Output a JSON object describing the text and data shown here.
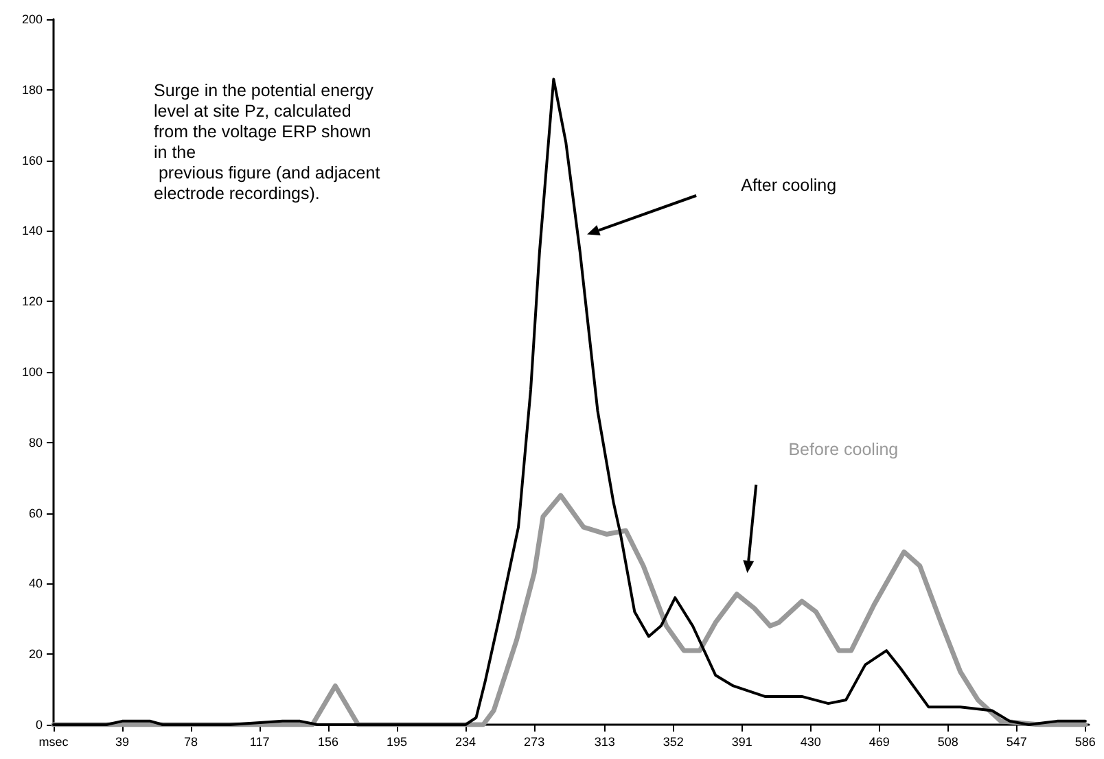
{
  "chart_data": {
    "type": "line",
    "annotations": [
      "Surge in the potential energy\nlevel at site Pz, calculated\nfrom the voltage ERP shown\nin the\n previous figure (and adjacent\nelectrode recordings)."
    ],
    "xlim": [
      0,
      588
    ],
    "xticks": [
      {
        "value": 0,
        "label": "msec"
      },
      39,
      78,
      117,
      156,
      195,
      234,
      273,
      313,
      352,
      391,
      430,
      469,
      508,
      547,
      586
    ],
    "ylim": [
      0,
      200
    ],
    "yticks": [
      0,
      20,
      40,
      60,
      80,
      100,
      120,
      140,
      160,
      180,
      200
    ],
    "grid": false,
    "legend": false,
    "marker": "none",
    "line_style": "solid",
    "series": [
      {
        "name": "After cooling",
        "color": "#000000",
        "x": [
          0,
          30,
          39,
          55,
          62,
          100,
          130,
          140,
          150,
          200,
          234,
          240,
          245,
          253,
          264,
          271,
          276,
          284,
          291,
          299,
          309,
          318,
          322,
          330,
          338,
          345,
          353,
          363,
          376,
          386,
          404,
          425,
          440,
          450,
          461,
          473,
          481,
          497,
          515,
          533,
          543,
          554,
          570,
          586
        ],
        "values": [
          0,
          0,
          1,
          1,
          0,
          0,
          1,
          1,
          0,
          0,
          0,
          2,
          12,
          30,
          56,
          95,
          134,
          183,
          165,
          134,
          89,
          63,
          54,
          32,
          25,
          28,
          36,
          28,
          14,
          11,
          8,
          8,
          6,
          7,
          17,
          21,
          16,
          5,
          5,
          4,
          1,
          0,
          1,
          1
        ]
      },
      {
        "name": "Before cooling",
        "color": "#999999",
        "x": [
          0,
          147,
          160,
          173,
          200,
          244,
          250,
          263,
          273,
          278,
          288,
          301,
          314,
          325,
          335,
          348,
          358,
          367,
          376,
          388,
          398,
          407,
          412,
          425,
          433,
          446,
          453,
          466,
          483,
          492,
          504,
          515,
          525,
          538,
          560,
          586
        ],
        "values": [
          0,
          0,
          11,
          0,
          0,
          0,
          4,
          24,
          43,
          59,
          65,
          56,
          54,
          55,
          45,
          28,
          21,
          21,
          29,
          37,
          33,
          28,
          29,
          35,
          32,
          21,
          21,
          34,
          49,
          45,
          29,
          15,
          7,
          1,
          0,
          0
        ]
      }
    ]
  }
}
